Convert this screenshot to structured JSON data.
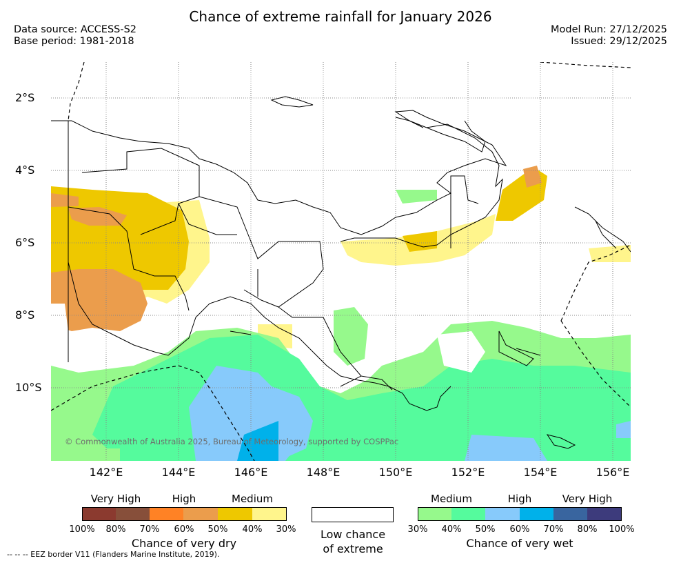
{
  "header": {
    "title": "Chance of extreme rainfall for January 2026",
    "data_source": "Data source: ACCESS-S2",
    "base_period": "Base period: 1981-2018",
    "model_run": "Model Run: 27/12/2025",
    "issued": "Issued: 29/12/2025"
  },
  "map": {
    "lat_labels": [
      "2°S",
      "4°S",
      "6°S",
      "8°S",
      "10°S"
    ],
    "lon_labels": [
      "142°E",
      "144°E",
      "146°E",
      "148°E",
      "150°E",
      "152°E",
      "154°E",
      "156°E"
    ],
    "copyright": "© Commonwealth of Australia 2025, Bureau of Meteorology, supported by COSPPac"
  },
  "legend": {
    "dry": {
      "headings": [
        "Very High",
        "High",
        "Medium"
      ],
      "ticks": [
        "100%",
        "80%",
        "70%",
        "60%",
        "50%",
        "40%",
        "30%"
      ],
      "title": "Chance of very dry",
      "colors": [
        "#8b3a2f",
        "#874f3a",
        "#ff8225",
        "#eb9d4c",
        "#eec800",
        "#fff58c"
      ]
    },
    "low": {
      "line1": "Low chance",
      "line2": "of extreme"
    },
    "wet": {
      "headings": [
        "Medium",
        "High",
        "Very High"
      ],
      "ticks": [
        "30%",
        "40%",
        "50%",
        "60%",
        "70%",
        "80%",
        "100%"
      ],
      "title": "Chance of very wet",
      "colors": [
        "#96f98c",
        "#55fb9d",
        "#87cafb",
        "#00b1ea",
        "#39659f",
        "#3d3b7c"
      ]
    },
    "footnote": "--  --  -- EEZ border V11 (Flanders Marine Institute, 2019)."
  },
  "colors": {
    "very_dry_yellow": "#fff58c",
    "dry_medium": "#eec800",
    "dry_orange": "#eb9d4c",
    "wet_green": "#96f98c",
    "wet_medium_green": "#55fb9d",
    "wet_blue": "#87cafb",
    "wet_cyan": "#00b1ea"
  }
}
